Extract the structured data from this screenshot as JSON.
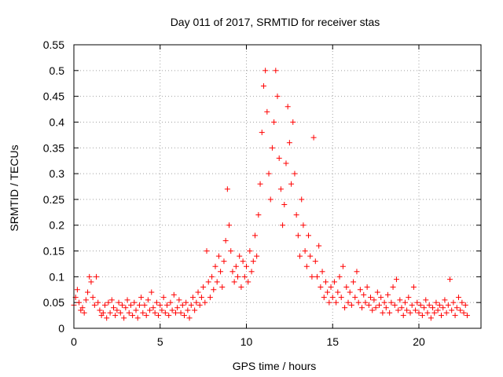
{
  "chart_data": {
    "type": "scatter",
    "title": "Day 011 of 2017, SRMTID for receiver stas",
    "xlabel": "GPS time / hours",
    "ylabel": "SRMTID / TECUs",
    "xlim": [
      0,
      23.6
    ],
    "ylim": [
      0,
      0.55
    ],
    "xticks": [
      0,
      5,
      10,
      15,
      20
    ],
    "xtick_labels": [
      "0",
      "5",
      "10",
      "15",
      "20"
    ],
    "yticks": [
      0,
      0.05,
      0.1,
      0.15,
      0.2,
      0.25,
      0.3,
      0.35,
      0.4,
      0.45,
      0.5,
      0.55
    ],
    "ytick_labels": [
      "0",
      "0.05",
      "0.1",
      "0.15",
      "0.2",
      "0.25",
      "0.3",
      "0.35",
      "0.4",
      "0.45",
      "0.5",
      "0.55"
    ],
    "grid": true,
    "marker": "+",
    "color": "#ff0000",
    "series": [
      {
        "name": "SRMTID",
        "points": [
          [
            0.0,
            0.045
          ],
          [
            0.1,
            0.06
          ],
          [
            0.2,
            0.075
          ],
          [
            0.3,
            0.05
          ],
          [
            0.4,
            0.035
          ],
          [
            0.5,
            0.04
          ],
          [
            0.6,
            0.03
          ],
          [
            0.7,
            0.055
          ],
          [
            0.8,
            0.07
          ],
          [
            0.9,
            0.1
          ],
          [
            1.0,
            0.09
          ],
          [
            1.1,
            0.06
          ],
          [
            1.2,
            0.045
          ],
          [
            1.3,
            0.1
          ],
          [
            1.4,
            0.05
          ],
          [
            1.5,
            0.035
          ],
          [
            1.6,
            0.025
          ],
          [
            1.7,
            0.03
          ],
          [
            1.8,
            0.045
          ],
          [
            1.9,
            0.02
          ],
          [
            2.0,
            0.05
          ],
          [
            2.1,
            0.03
          ],
          [
            2.2,
            0.055
          ],
          [
            2.3,
            0.04
          ],
          [
            2.4,
            0.025
          ],
          [
            2.5,
            0.035
          ],
          [
            2.6,
            0.05
          ],
          [
            2.7,
            0.03
          ],
          [
            2.8,
            0.045
          ],
          [
            2.9,
            0.02
          ],
          [
            3.0,
            0.04
          ],
          [
            3.1,
            0.055
          ],
          [
            3.2,
            0.03
          ],
          [
            3.3,
            0.045
          ],
          [
            3.4,
            0.025
          ],
          [
            3.5,
            0.05
          ],
          [
            3.6,
            0.035
          ],
          [
            3.7,
            0.02
          ],
          [
            3.8,
            0.045
          ],
          [
            3.9,
            0.06
          ],
          [
            4.0,
            0.03
          ],
          [
            4.1,
            0.045
          ],
          [
            4.2,
            0.025
          ],
          [
            4.3,
            0.055
          ],
          [
            4.4,
            0.035
          ],
          [
            4.5,
            0.07
          ],
          [
            4.6,
            0.04
          ],
          [
            4.7,
            0.03
          ],
          [
            4.8,
            0.05
          ],
          [
            4.9,
            0.025
          ],
          [
            5.0,
            0.045
          ],
          [
            5.1,
            0.035
          ],
          [
            5.2,
            0.06
          ],
          [
            5.3,
            0.03
          ],
          [
            5.4,
            0.045
          ],
          [
            5.5,
            0.025
          ],
          [
            5.6,
            0.05
          ],
          [
            5.7,
            0.035
          ],
          [
            5.8,
            0.065
          ],
          [
            5.9,
            0.03
          ],
          [
            6.0,
            0.04
          ],
          [
            6.1,
            0.055
          ],
          [
            6.2,
            0.03
          ],
          [
            6.3,
            0.045
          ],
          [
            6.4,
            0.025
          ],
          [
            6.5,
            0.05
          ],
          [
            6.6,
            0.035
          ],
          [
            6.7,
            0.02
          ],
          [
            6.8,
            0.045
          ],
          [
            6.9,
            0.06
          ],
          [
            7.0,
            0.035
          ],
          [
            7.1,
            0.05
          ],
          [
            7.2,
            0.07
          ],
          [
            7.3,
            0.045
          ],
          [
            7.4,
            0.06
          ],
          [
            7.5,
            0.08
          ],
          [
            7.6,
            0.05
          ],
          [
            7.7,
            0.15
          ],
          [
            7.8,
            0.09
          ],
          [
            7.9,
            0.06
          ],
          [
            8.0,
            0.1
          ],
          [
            8.1,
            0.075
          ],
          [
            8.2,
            0.12
          ],
          [
            8.3,
            0.09
          ],
          [
            8.4,
            0.14
          ],
          [
            8.5,
            0.11
          ],
          [
            8.6,
            0.08
          ],
          [
            8.7,
            0.13
          ],
          [
            8.8,
            0.17
          ],
          [
            8.9,
            0.27
          ],
          [
            9.0,
            0.2
          ],
          [
            9.1,
            0.15
          ],
          [
            9.2,
            0.11
          ],
          [
            9.3,
            0.09
          ],
          [
            9.4,
            0.12
          ],
          [
            9.5,
            0.1
          ],
          [
            9.6,
            0.14
          ],
          [
            9.7,
            0.08
          ],
          [
            9.8,
            0.13
          ],
          [
            9.9,
            0.1
          ],
          [
            10.0,
            0.12
          ],
          [
            10.1,
            0.09
          ],
          [
            10.2,
            0.15
          ],
          [
            10.3,
            0.11
          ],
          [
            10.4,
            0.13
          ],
          [
            10.5,
            0.18
          ],
          [
            10.6,
            0.14
          ],
          [
            10.7,
            0.22
          ],
          [
            10.8,
            0.28
          ],
          [
            10.9,
            0.38
          ],
          [
            11.0,
            0.47
          ],
          [
            11.1,
            0.5
          ],
          [
            11.2,
            0.42
          ],
          [
            11.3,
            0.3
          ],
          [
            11.4,
            0.25
          ],
          [
            11.5,
            0.35
          ],
          [
            11.6,
            0.4
          ],
          [
            11.7,
            0.5
          ],
          [
            11.8,
            0.45
          ],
          [
            11.9,
            0.33
          ],
          [
            12.0,
            0.27
          ],
          [
            12.1,
            0.2
          ],
          [
            12.2,
            0.24
          ],
          [
            12.3,
            0.32
          ],
          [
            12.4,
            0.43
          ],
          [
            12.5,
            0.36
          ],
          [
            12.6,
            0.28
          ],
          [
            12.7,
            0.4
          ],
          [
            12.8,
            0.3
          ],
          [
            12.9,
            0.22
          ],
          [
            13.0,
            0.18
          ],
          [
            13.1,
            0.14
          ],
          [
            13.2,
            0.25
          ],
          [
            13.3,
            0.2
          ],
          [
            13.4,
            0.15
          ],
          [
            13.5,
            0.12
          ],
          [
            13.6,
            0.18
          ],
          [
            13.7,
            0.14
          ],
          [
            13.8,
            0.1
          ],
          [
            13.9,
            0.37
          ],
          [
            14.0,
            0.13
          ],
          [
            14.1,
            0.1
          ],
          [
            14.2,
            0.16
          ],
          [
            14.3,
            0.08
          ],
          [
            14.4,
            0.11
          ],
          [
            14.5,
            0.06
          ],
          [
            14.6,
            0.09
          ],
          [
            14.7,
            0.07
          ],
          [
            14.8,
            0.05
          ],
          [
            14.9,
            0.08
          ],
          [
            15.0,
            0.06
          ],
          [
            15.1,
            0.09
          ],
          [
            15.2,
            0.05
          ],
          [
            15.3,
            0.07
          ],
          [
            15.4,
            0.1
          ],
          [
            15.5,
            0.06
          ],
          [
            15.6,
            0.12
          ],
          [
            15.7,
            0.04
          ],
          [
            15.8,
            0.08
          ],
          [
            15.9,
            0.05
          ],
          [
            16.0,
            0.07
          ],
          [
            16.1,
            0.045
          ],
          [
            16.2,
            0.09
          ],
          [
            16.3,
            0.06
          ],
          [
            16.4,
            0.11
          ],
          [
            16.5,
            0.05
          ],
          [
            16.6,
            0.075
          ],
          [
            16.7,
            0.04
          ],
          [
            16.8,
            0.065
          ],
          [
            16.9,
            0.05
          ],
          [
            17.0,
            0.08
          ],
          [
            17.1,
            0.045
          ],
          [
            17.2,
            0.06
          ],
          [
            17.3,
            0.035
          ],
          [
            17.4,
            0.055
          ],
          [
            17.5,
            0.04
          ],
          [
            17.6,
            0.07
          ],
          [
            17.7,
            0.045
          ],
          [
            17.8,
            0.06
          ],
          [
            17.9,
            0.03
          ],
          [
            18.0,
            0.05
          ],
          [
            18.1,
            0.04
          ],
          [
            18.2,
            0.065
          ],
          [
            18.3,
            0.03
          ],
          [
            18.4,
            0.05
          ],
          [
            18.5,
            0.08
          ],
          [
            18.6,
            0.045
          ],
          [
            18.7,
            0.095
          ],
          [
            18.8,
            0.035
          ],
          [
            18.9,
            0.055
          ],
          [
            19.0,
            0.04
          ],
          [
            19.1,
            0.025
          ],
          [
            19.2,
            0.05
          ],
          [
            19.3,
            0.035
          ],
          [
            19.4,
            0.06
          ],
          [
            19.5,
            0.03
          ],
          [
            19.6,
            0.045
          ],
          [
            19.7,
            0.08
          ],
          [
            19.8,
            0.035
          ],
          [
            19.9,
            0.05
          ],
          [
            20.0,
            0.03
          ],
          [
            20.1,
            0.045
          ],
          [
            20.2,
            0.025
          ],
          [
            20.3,
            0.04
          ],
          [
            20.4,
            0.055
          ],
          [
            20.5,
            0.03
          ],
          [
            20.6,
            0.045
          ],
          [
            20.7,
            0.02
          ],
          [
            20.8,
            0.04
          ],
          [
            20.9,
            0.03
          ],
          [
            21.0,
            0.05
          ],
          [
            21.1,
            0.035
          ],
          [
            21.2,
            0.045
          ],
          [
            21.3,
            0.025
          ],
          [
            21.4,
            0.04
          ],
          [
            21.5,
            0.055
          ],
          [
            21.6,
            0.03
          ],
          [
            21.7,
            0.045
          ],
          [
            21.8,
            0.095
          ],
          [
            21.9,
            0.035
          ],
          [
            22.0,
            0.05
          ],
          [
            22.1,
            0.025
          ],
          [
            22.2,
            0.04
          ],
          [
            22.3,
            0.06
          ],
          [
            22.4,
            0.035
          ],
          [
            22.5,
            0.05
          ],
          [
            22.6,
            0.03
          ],
          [
            22.7,
            0.045
          ],
          [
            22.8,
            0.025
          ]
        ]
      }
    ]
  }
}
